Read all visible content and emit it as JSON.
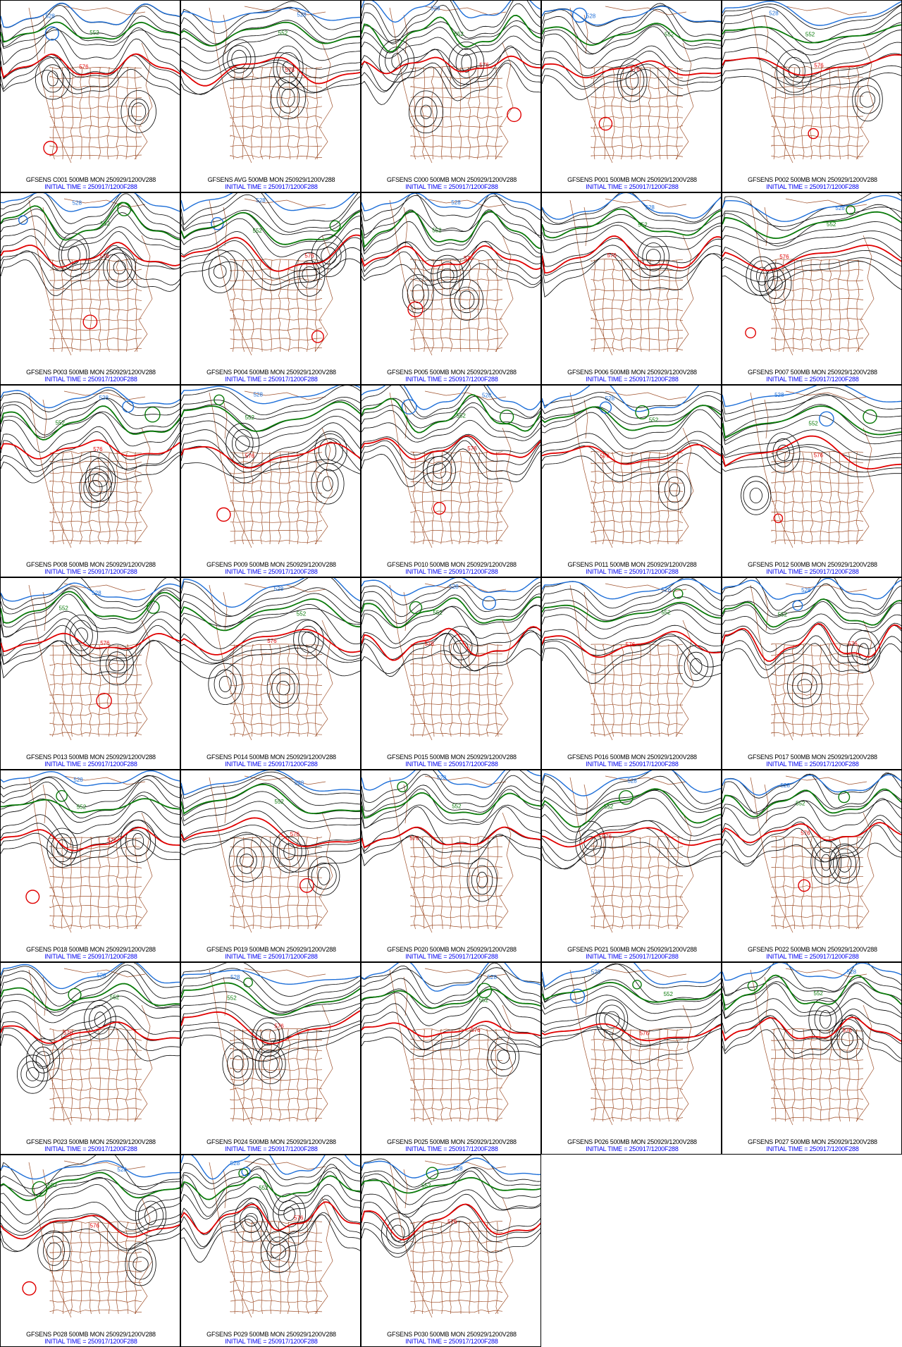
{
  "initial_time": "INITIAL TIME = 250917/1200F288",
  "contour_labels": {
    "low": "528",
    "mid": "552",
    "high": "576"
  },
  "colors": {
    "border": "#a0522d",
    "low": "#1e6fd8",
    "mid": "#0a7a0a",
    "high": "#e00000",
    "iso": "#000000",
    "caption_top": "#000000",
    "caption_bottom": "#0000ee"
  },
  "panels": [
    {
      "title": "GFSENS C001 500MB MON 250929/1200V288",
      "flags": [
        1,
        0,
        1
      ]
    },
    {
      "title": "GFSENS AVG 500MB MON 250929/1200V288",
      "flags": [
        0,
        0,
        0
      ]
    },
    {
      "title": "GFSENS C000 500MB MON 250929/1200V288",
      "flags": [
        0,
        0,
        1
      ]
    },
    {
      "title": "GFSENS P001 500MB MON 250929/1200V288",
      "flags": [
        1,
        0,
        1
      ]
    },
    {
      "title": "GFSENS P002 500MB MON 250929/1200V288",
      "flags": [
        0,
        0,
        1
      ]
    },
    {
      "title": "GFSENS P003 500MB MON 250929/1200V288",
      "flags": [
        1,
        1,
        1
      ]
    },
    {
      "title": "GFSENS P004 500MB MON 250929/1200V288",
      "flags": [
        1,
        1,
        1
      ]
    },
    {
      "title": "GFSENS P005 500MB MON 250929/1200V288",
      "flags": [
        0,
        0,
        1
      ]
    },
    {
      "title": "GFSENS P006 500MB MON 250929/1200V288",
      "flags": [
        0,
        0,
        0
      ]
    },
    {
      "title": "GFSENS P007 500MB MON 250929/1200V288",
      "flags": [
        0,
        1,
        1
      ]
    },
    {
      "title": "GFSENS P008 500MB MON 250929/1200V288",
      "flags": [
        1,
        1,
        0
      ]
    },
    {
      "title": "GFSENS P009 500MB MON 250929/1200V288",
      "flags": [
        0,
        1,
        1
      ]
    },
    {
      "title": "GFSENS P010 500MB MON 250929/1200V288",
      "flags": [
        1,
        1,
        1
      ]
    },
    {
      "title": "GFSENS P011 500MB MON 250929/1200V288",
      "flags": [
        1,
        1,
        0
      ]
    },
    {
      "title": "GFSENS P012 500MB MON 250929/1200V288",
      "flags": [
        1,
        1,
        1
      ]
    },
    {
      "title": "GFSENS P013 500MB MON 250929/1200V288",
      "flags": [
        0,
        1,
        1
      ]
    },
    {
      "title": "GFSENS P014 500MB MON 250929/1200V288",
      "flags": [
        0,
        0,
        0
      ]
    },
    {
      "title": "GFSENS P015 500MB MON 250929/1200V288",
      "flags": [
        1,
        1,
        0
      ]
    },
    {
      "title": "GFSENS P016 500MB MON 250929/1200V288",
      "flags": [
        0,
        1,
        0
      ]
    },
    {
      "title": "GFSENS P017 500MB MON 250929/1200V288",
      "flags": [
        1,
        0,
        0
      ]
    },
    {
      "title": "GFSENS P018 500MB MON 250929/1200V288",
      "flags": [
        0,
        1,
        1
      ]
    },
    {
      "title": "GFSENS P019 500MB MON 250929/1200V288",
      "flags": [
        0,
        0,
        1
      ]
    },
    {
      "title": "GFSENS P020 500MB MON 250929/1200V288",
      "flags": [
        0,
        1,
        0
      ]
    },
    {
      "title": "GFSENS P021 500MB MON 250929/1200V288",
      "flags": [
        0,
        1,
        0
      ]
    },
    {
      "title": "GFSENS P022 500MB MON 250929/1200V288",
      "flags": [
        0,
        1,
        1
      ]
    },
    {
      "title": "GFSENS P023 500MB MON 250929/1200V288",
      "flags": [
        0,
        1,
        0
      ]
    },
    {
      "title": "GFSENS P024 500MB MON 250929/1200V288",
      "flags": [
        0,
        1,
        0
      ]
    },
    {
      "title": "GFSENS P025 500MB MON 250929/1200V288",
      "flags": [
        0,
        1,
        0
      ]
    },
    {
      "title": "GFSENS P026 500MB MON 250929/1200V288",
      "flags": [
        1,
        1,
        0
      ]
    },
    {
      "title": "GFSENS P027 500MB MON 250929/1200V288",
      "flags": [
        0,
        1,
        0
      ]
    },
    {
      "title": "GFSENS P028 500MB MON 250929/1200V288",
      "flags": [
        0,
        1,
        1
      ]
    },
    {
      "title": "GFSENS P029 500MB MON 250929/1200V288",
      "flags": [
        1,
        1,
        0
      ]
    },
    {
      "title": "GFSENS P030 500MB MON 250929/1200V288",
      "flags": [
        0,
        1,
        0
      ]
    }
  ]
}
